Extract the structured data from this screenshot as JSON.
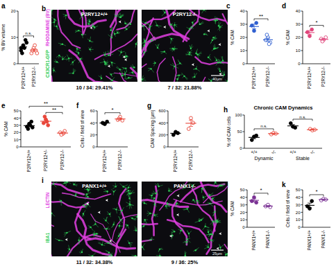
{
  "chart_data": [
    {
      "type": "dot",
      "panel": "a",
      "y_label": "% BV volume",
      "ylim": [
        0,
        20
      ],
      "yticks": [
        0,
        10,
        20
      ],
      "groups": [
        {
          "label": "P2RY12+/+",
          "color": "#000000",
          "marker": "filled",
          "values": [
            5,
            7,
            9,
            4,
            6,
            8,
            6
          ],
          "mean": 6.4,
          "error": 0.7
        },
        {
          "label": "P2RY12-/-",
          "color": "#e8463a",
          "marker": "open",
          "values": [
            4,
            6,
            5,
            5,
            7,
            4
          ],
          "mean": 5.2,
          "error": 0.5
        }
      ],
      "annotations": [
        {
          "text": "n.s.",
          "from": 0,
          "to": 1
        }
      ]
    },
    {
      "type": "dot",
      "panel": "c",
      "y_label": "% CAM",
      "ylim": [
        0,
        40
      ],
      "yticks": [
        0,
        10,
        20,
        30,
        40
      ],
      "groups": [
        {
          "label": "P2RY12+/+",
          "color": "#2f5fd0",
          "marker": "filled",
          "values": [
            29,
            25,
            31
          ],
          "mean": 28.3,
          "error": 1.8
        },
        {
          "label": "P2RY12-/-",
          "color": "#2f5fd0",
          "marker": "open",
          "values": [
            18,
            20,
            16,
            22,
            15
          ],
          "mean": 18.2,
          "error": 1.3
        }
      ],
      "annotations": [
        {
          "text": "**",
          "from": 0,
          "to": 1
        }
      ]
    },
    {
      "type": "dot",
      "panel": "d",
      "y_label": "% CAM",
      "ylim": [
        0,
        40
      ],
      "yticks": [
        0,
        10,
        20,
        30,
        40
      ],
      "groups": [
        {
          "label": "P2RY12+/+",
          "color": "#e0457b",
          "marker": "filled",
          "values": [
            24,
            21,
            26
          ],
          "mean": 23.7,
          "error": 1.5
        },
        {
          "label": "P2RY12-/-",
          "color": "#e0457b",
          "marker": "open",
          "values": [
            19,
            18,
            20,
            17
          ],
          "mean": 18.5,
          "error": 0.6
        }
      ],
      "annotations": [
        {
          "text": "*",
          "from": 0,
          "to": 1
        }
      ]
    },
    {
      "type": "dot",
      "panel": "e",
      "y_label": "% CAM",
      "ylim": [
        0,
        50
      ],
      "yticks": [
        0,
        10,
        20,
        30,
        40,
        50
      ],
      "groups": [
        {
          "label": "P2RY12+/+",
          "color": "#000000",
          "marker": "filled",
          "values": [
            28,
            32,
            35,
            25,
            30,
            27
          ],
          "mean": 29.5,
          "error": 1.5
        },
        {
          "label": "P2RY12+/-",
          "color": "#e8463a",
          "marker": "filled",
          "values": [
            33,
            38,
            30,
            42,
            35
          ],
          "mean": 35.6,
          "error": 2.1
        },
        {
          "label": "P2RY12-/-",
          "color": "#e8463a",
          "marker": "open",
          "values": [
            20,
            18,
            22,
            17,
            19
          ],
          "mean": 19.2,
          "error": 0.9
        }
      ],
      "annotations": [
        {
          "text": "**",
          "from": 1,
          "to": 2
        },
        {
          "text": "**",
          "from": 0,
          "to": 2
        }
      ]
    },
    {
      "type": "dot",
      "panel": "f",
      "y_label": "Cells / field of view",
      "ylim": [
        0,
        60
      ],
      "yticks": [
        0,
        20,
        40,
        60
      ],
      "groups": [
        {
          "label": "P2RY12+/+",
          "color": "#000000",
          "marker": "filled",
          "values": [
            40,
            38,
            42,
            39
          ],
          "mean": 39.8,
          "error": 0.9
        },
        {
          "label": "P2RY12-/-",
          "color": "#e8463a",
          "marker": "open",
          "values": [
            45,
            50,
            44,
            47
          ],
          "mean": 46.5,
          "error": 1.3
        }
      ],
      "annotations": [
        {
          "text": "*",
          "from": 0,
          "to": 1
        }
      ]
    },
    {
      "type": "dot",
      "panel": "g",
      "y_label": "CAM Spacing (µm)",
      "ylim": [
        0,
        600
      ],
      "yticks": [
        0,
        200,
        400,
        600
      ],
      "groups": [
        {
          "label": "P2RY12+/+",
          "color": "#000000",
          "marker": "filled",
          "values": [
            200,
            250,
            230
          ],
          "mean": 226.7,
          "error": 14.5
        },
        {
          "label": "P2RY12-/-",
          "color": "#e8463a",
          "marker": "open",
          "values": [
            300,
            480,
            400
          ],
          "mean": 393.3,
          "error": 52
        }
      ],
      "annotations": []
    },
    {
      "type": "dot",
      "panel": "h",
      "title": "Chronic CAM Dynamics",
      "y_label": "% of CAM cells",
      "ylim": [
        0,
        100
      ],
      "yticks": [
        0,
        50,
        100
      ],
      "categories": [
        "Dynamic",
        "Stable"
      ],
      "groups": [
        {
          "label": "+/+",
          "category": 0,
          "color": "#000000",
          "marker": "filled",
          "values": [
            25,
            35,
            38
          ],
          "mean": 32.7,
          "error": 3.9
        },
        {
          "label": "-/-",
          "category": 0,
          "color": "#e8463a",
          "marker": "open",
          "values": [
            42,
            46,
            44
          ],
          "mean": 44,
          "error": 1.2
        },
        {
          "label": "+/+",
          "category": 1,
          "color": "#000000",
          "marker": "filled",
          "values": [
            75,
            65,
            62
          ],
          "mean": 67.3,
          "error": 3.9
        },
        {
          "label": "-/-",
          "category": 1,
          "color": "#e8463a",
          "marker": "open",
          "values": [
            58,
            54,
            56
          ],
          "mean": 56,
          "error": 1.2
        }
      ],
      "annotations": [
        {
          "text": "n.s.",
          "from": 0,
          "to": 1
        },
        {
          "text": "n.s.",
          "from": 2,
          "to": 3
        }
      ]
    },
    {
      "type": "dot",
      "panel": "j",
      "y_label": "% CAM",
      "ylim": [
        0,
        50
      ],
      "yticks": [
        0,
        10,
        20,
        30,
        40,
        50
      ],
      "groups": [
        {
          "label": "PANX1+/+",
          "color": "#7b3294",
          "marker": "filled",
          "values": [
            35,
            40,
            33
          ],
          "mean": 36,
          "error": 2.1
        },
        {
          "label": "PANX1-/-",
          "color": "#7b3294",
          "marker": "open",
          "values": [
            28,
            30,
            27
          ],
          "mean": 28.3,
          "error": 0.9
        }
      ],
      "annotations": [
        {
          "text": "*",
          "from": 0,
          "to": 1
        }
      ]
    },
    {
      "type": "dot",
      "panel": "k",
      "y_label": "Cells / field of view",
      "ylim": [
        0,
        50
      ],
      "yticks": [
        0,
        10,
        20,
        30,
        40,
        50
      ],
      "groups": [
        {
          "label": "PANX1+/+",
          "color": "#000000",
          "marker": "filled",
          "values": [
            28,
            25,
            35
          ],
          "mean": 29.3,
          "error": 3
        },
        {
          "label": "PANX1-/-",
          "color": "#7b3294",
          "marker": "open",
          "values": [
            36,
            38,
            37
          ],
          "mean": 37,
          "error": 0.6
        }
      ],
      "annotations": [
        {
          "text": "*",
          "from": 0,
          "to": 1
        }
      ]
    }
  ],
  "images": [
    {
      "panel": "b",
      "channels": [
        {
          "label": "CX3CR1-GFP",
          "color": "#2ecc55"
        },
        {
          "label": "RHODAMINE (BV)",
          "color": "#e040e0"
        }
      ],
      "panes": [
        {
          "label": "P2RY12+/+",
          "caption": "10 / 34: 29.41%"
        },
        {
          "label": "P2RY12-/-",
          "caption": "7 / 32: 21.88%"
        }
      ],
      "scale_bar": "40µm"
    },
    {
      "panel": "i",
      "channels": [
        {
          "label": "IBA1",
          "color": "#2ecc55"
        },
        {
          "label": "LECTIN",
          "color": "#e040e0"
        }
      ],
      "panes": [
        {
          "label": "PANX1+/+",
          "caption": "11 / 32: 34.38%"
        },
        {
          "label": "PANX1-/-",
          "caption": "9 / 36: 25%"
        }
      ],
      "scale_bar": "25µm"
    }
  ]
}
